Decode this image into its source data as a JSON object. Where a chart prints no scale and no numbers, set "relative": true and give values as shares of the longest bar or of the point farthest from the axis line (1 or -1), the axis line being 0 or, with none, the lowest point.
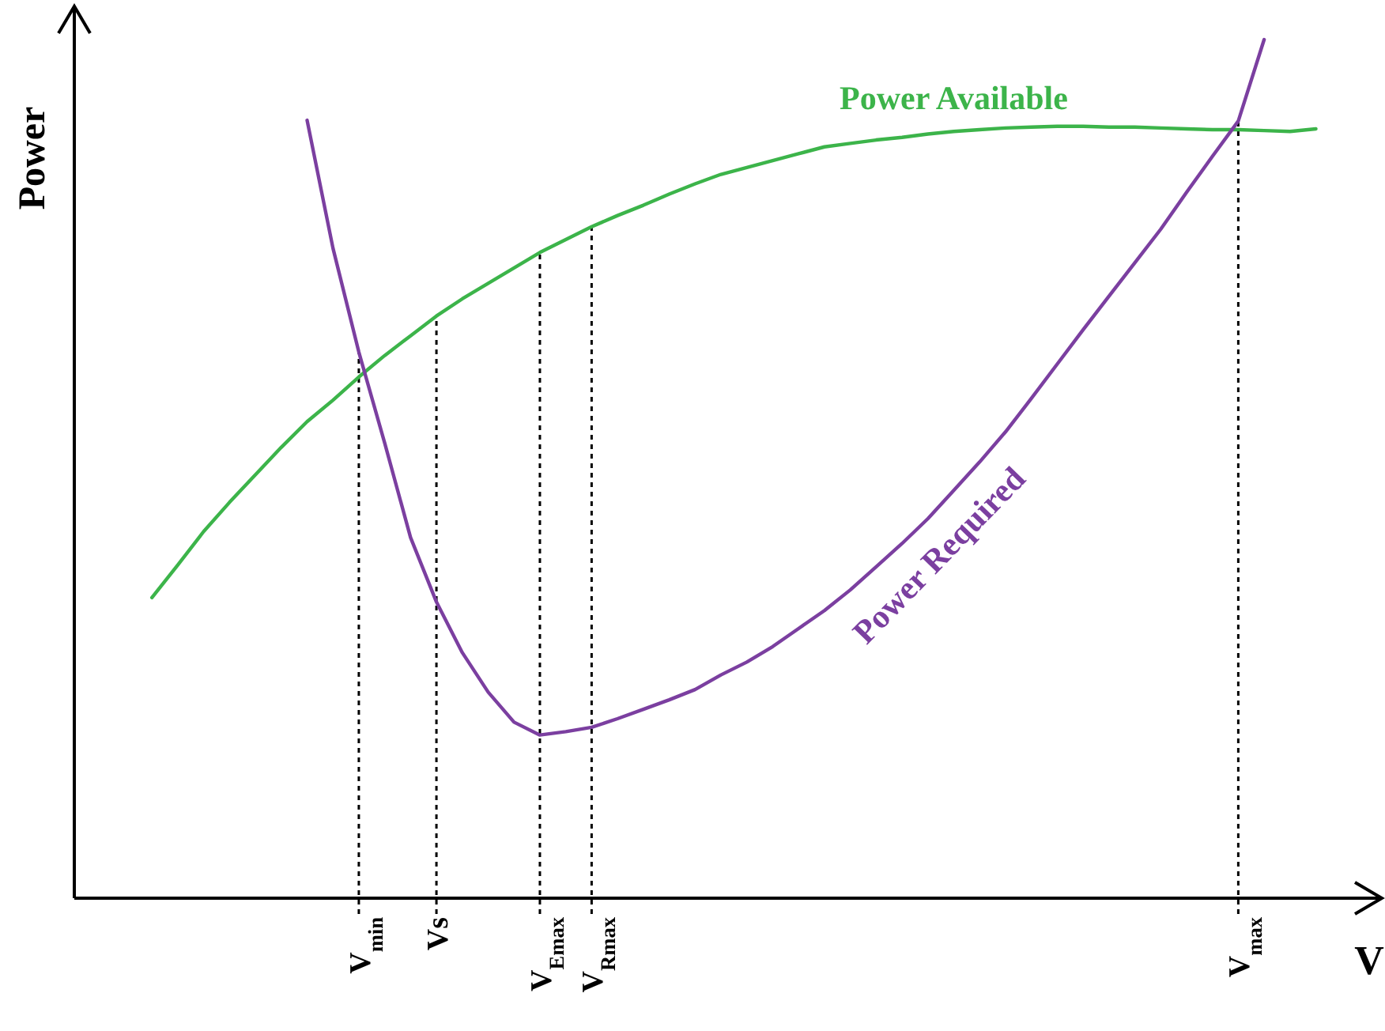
{
  "chart_data": {
    "type": "line",
    "relative": true,
    "xlabel": "V",
    "ylabel": "Power",
    "categories": [
      null,
      null,
      null,
      null,
      null,
      null,
      null,
      null,
      null,
      null,
      null,
      "V$_{min}$",
      null,
      null,
      "Vs",
      null,
      null,
      null,
      "V$_{Emax}$",
      null,
      "V$_{Rmax}$",
      null,
      null,
      null,
      null,
      null,
      null,
      null,
      null,
      null,
      null,
      null,
      null,
      null,
      null,
      null,
      null,
      null,
      null,
      null,
      null,
      null,
      null,
      null,
      null,
      "V$_{max}$",
      null,
      null,
      null,
      null,
      null
    ],
    "ref_lines": [
      {
        "axis": "x",
        "value": "V$_{min}$",
        "line_style": "dotted"
      },
      {
        "axis": "x",
        "value": "Vs",
        "line_style": "dotted"
      },
      {
        "axis": "x",
        "value": "V$_{Emax}$",
        "line_style": "dotted"
      },
      {
        "axis": "x",
        "value": "V$_{Rmax}$",
        "line_style": "dotted"
      },
      {
        "axis": "x",
        "value": "V$_{max}$",
        "line_style": "dotted"
      }
    ],
    "series": [
      {
        "name": "Power Available",
        "color": "#3cb44a",
        "values": [
          null,
          null,
          null,
          0.35,
          0.388,
          0.427,
          0.461,
          0.493,
          0.525,
          0.555,
          0.58,
          0.607,
          0.632,
          0.655,
          0.678,
          0.698,
          0.716,
          0.734,
          0.752,
          0.767,
          0.782,
          0.795,
          0.807,
          0.82,
          0.832,
          0.843,
          0.851,
          0.859,
          0.867,
          0.875,
          0.879,
          0.883,
          0.886,
          0.89,
          0.893,
          0.895,
          0.897,
          0.898,
          0.899,
          0.899,
          0.898,
          0.898,
          0.897,
          0.896,
          0.895,
          0.895,
          0.894,
          0.893,
          0.896,
          null,
          null
        ]
      },
      {
        "name": "Power Required",
        "color": "#7b3fa0",
        "values": [
          null,
          null,
          null,
          null,
          null,
          null,
          null,
          null,
          null,
          0.906,
          0.757,
          0.636,
          0.53,
          0.42,
          0.345,
          0.286,
          0.24,
          0.205,
          0.19,
          0.194,
          0.199,
          0.209,
          0.22,
          0.231,
          0.243,
          0.26,
          0.275,
          0.293,
          0.314,
          0.335,
          0.359,
          0.386,
          0.413,
          0.442,
          0.475,
          0.508,
          0.543,
          0.582,
          0.622,
          0.662,
          0.701,
          0.74,
          0.779,
          0.822,
          0.864,
          0.905,
          1,
          null,
          null,
          null,
          null
        ]
      }
    ]
  }
}
